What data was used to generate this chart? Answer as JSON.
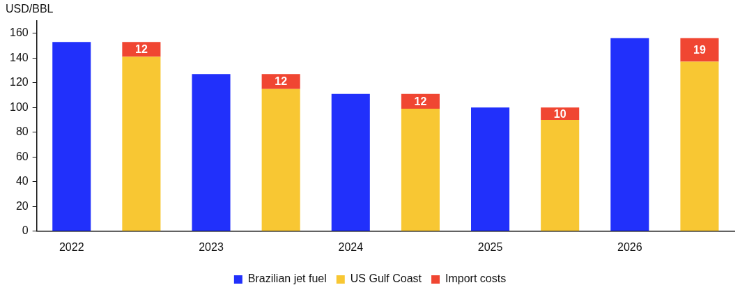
{
  "chart_data": {
    "type": "bar",
    "ylabel": "USD/BBL",
    "categories": [
      "2022",
      null,
      "2023",
      null,
      "2024",
      null,
      "2025",
      null,
      "2026",
      null
    ],
    "stacked": true,
    "series": [
      {
        "name": "Brazilian jet fuel",
        "color": "#2130fb",
        "values": [
          153,
          null,
          127,
          null,
          111,
          null,
          100,
          null,
          156,
          null
        ]
      },
      {
        "name": "US Gulf Coast",
        "color": "#f8c733",
        "values": [
          null,
          141,
          null,
          115,
          null,
          99,
          null,
          90,
          null,
          137
        ]
      },
      {
        "name": "Import costs",
        "color": "#f04632",
        "values": [
          null,
          12,
          null,
          12,
          null,
          12,
          null,
          10,
          null,
          19
        ],
        "value_labels": [
          null,
          "12",
          null,
          "12",
          null,
          "12",
          null,
          "10",
          null,
          "19"
        ]
      }
    ],
    "ylim": [
      0,
      170
    ],
    "yticks": [
      0,
      20,
      40,
      60,
      80,
      100,
      120,
      140,
      160
    ],
    "grid": false,
    "legend": "bottom"
  }
}
